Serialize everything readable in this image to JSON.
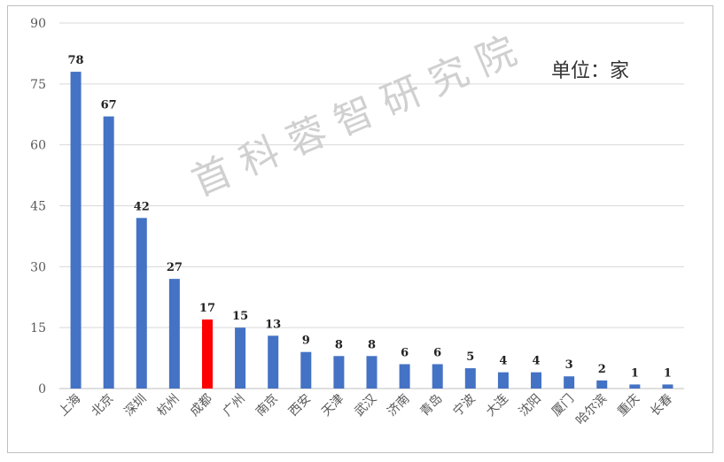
{
  "chart_data": {
    "type": "bar",
    "title": "",
    "xlabel": "",
    "ylabel": "",
    "unit_annotation": "单位：家",
    "watermark": "首科蓉智研究院",
    "categories": [
      "上海",
      "北京",
      "深圳",
      "杭州",
      "成都",
      "广州",
      "南京",
      "西安",
      "天津",
      "武汉",
      "济南",
      "青岛",
      "宁波",
      "大连",
      "沈阳",
      "厦门",
      "哈尔滨",
      "重庆",
      "长春"
    ],
    "values": [
      78,
      67,
      42,
      27,
      17,
      15,
      13,
      9,
      8,
      8,
      6,
      6,
      5,
      4,
      4,
      3,
      2,
      1,
      1
    ],
    "highlight_index": 4,
    "colors": {
      "bar": "#4472c4",
      "highlight": "#ff0000",
      "grid": "#d9d9d9",
      "text": "#595959"
    },
    "ylim": [
      0,
      90
    ],
    "yticks": [
      0,
      15,
      30,
      45,
      60,
      75,
      90
    ],
    "grid": true,
    "data_labels": true
  }
}
